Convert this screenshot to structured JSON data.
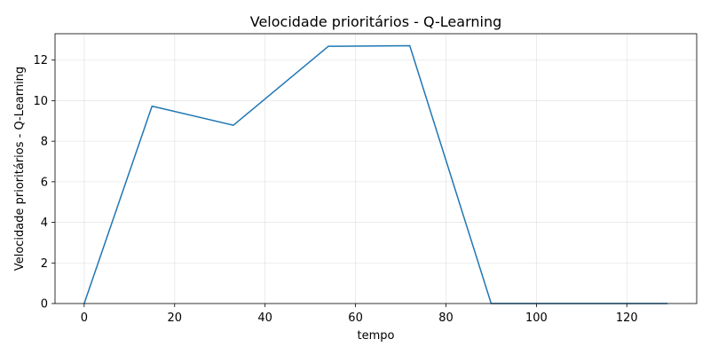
{
  "chart_data": {
    "type": "line",
    "title": "Velocidade prioritários - Q-Learning",
    "xlabel": "tempo",
    "ylabel": "Velocidade prioritários - Q-Learning",
    "xlim": [
      -6.45,
      135.45
    ],
    "ylim": [
      0,
      13.3
    ],
    "xticks": [
      0,
      20,
      40,
      60,
      80,
      100,
      120
    ],
    "yticks": [
      0,
      2,
      4,
      6,
      8,
      10,
      12
    ],
    "grid": true,
    "series": [
      {
        "color": "#1f77b4",
        "x": [
          0,
          15,
          33,
          54,
          72,
          90,
          129
        ],
        "y": [
          0,
          9.73,
          8.79,
          12.68,
          12.71,
          0.0,
          0.0
        ]
      }
    ]
  }
}
